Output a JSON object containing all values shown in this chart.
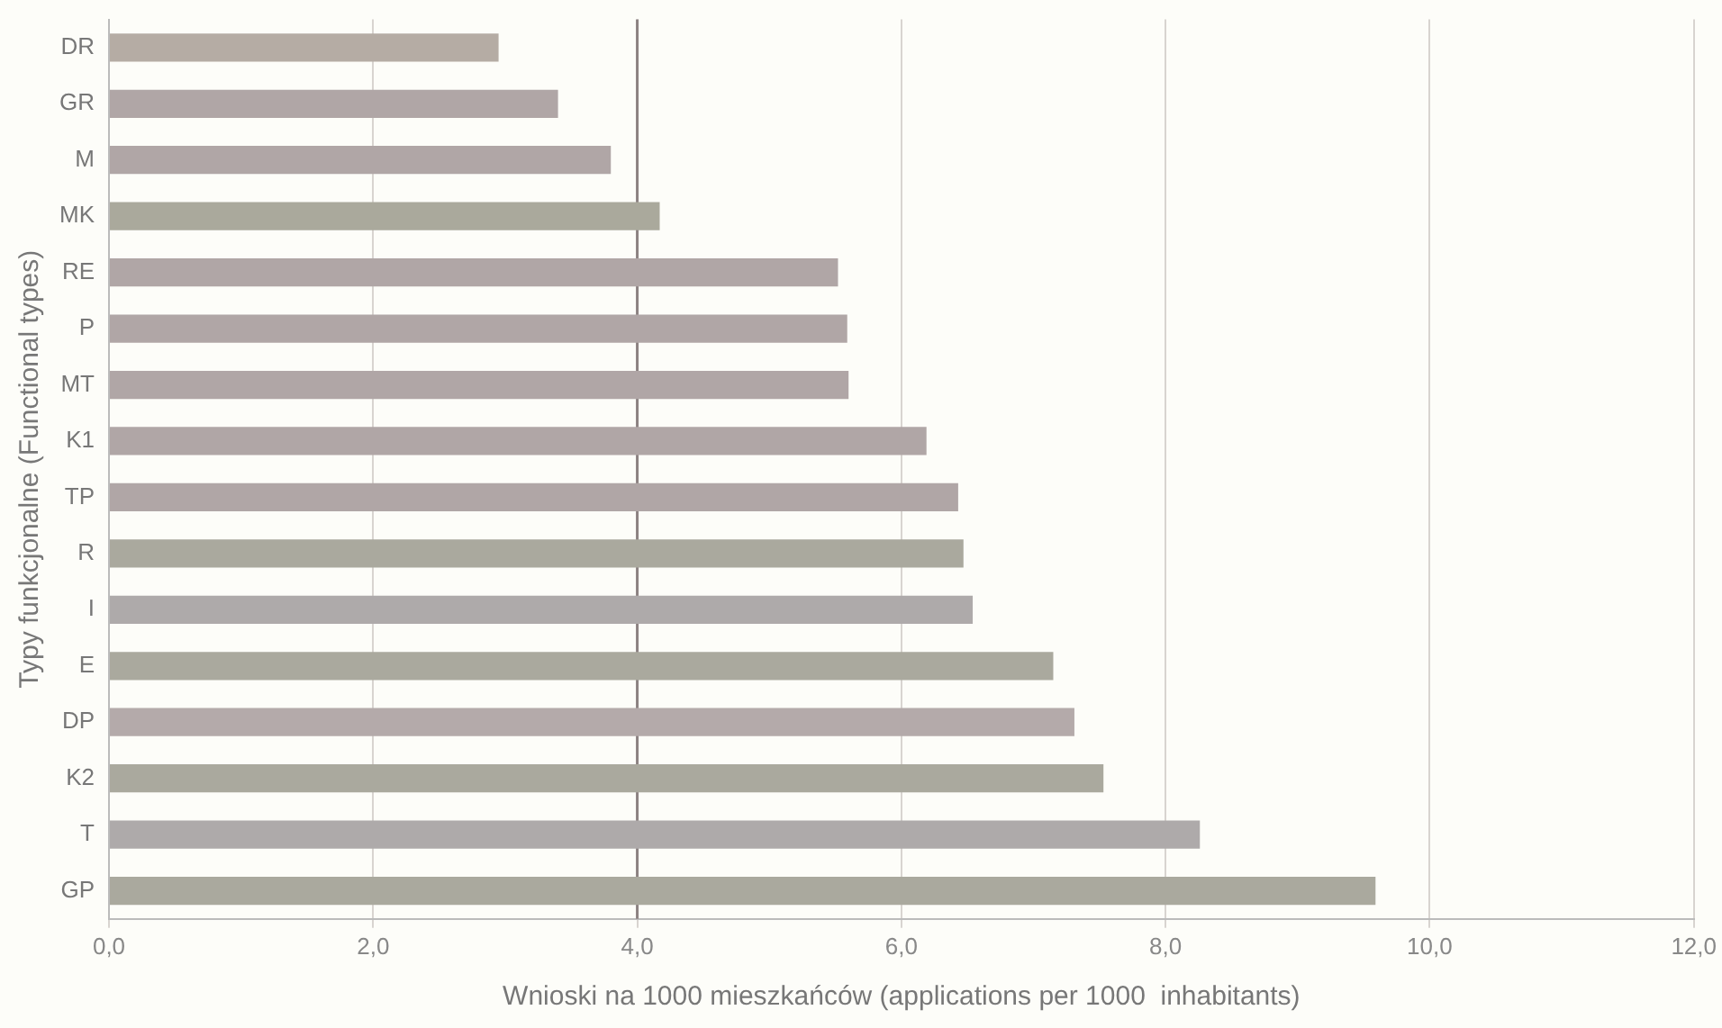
{
  "chart_data": {
    "type": "bar",
    "orientation": "horizontal",
    "xlabel": "Wnioski na 1000 mieszkańców (applications per 1000  inhabitants)",
    "ylabel": "Typy funkcjonalne (Functional types)",
    "categories": [
      "DR",
      "GR",
      "M",
      "MK",
      "RE",
      "P",
      "MT",
      "K1",
      "TP",
      "R",
      "I",
      "E",
      "DP",
      "K2",
      "T",
      "GP"
    ],
    "values": [
      2.95,
      3.4,
      3.8,
      4.17,
      5.52,
      5.59,
      5.6,
      6.19,
      6.43,
      6.47,
      6.54,
      7.15,
      7.31,
      7.53,
      8.26,
      9.59
    ],
    "colors": [
      "#b5aca4",
      "#b0a6a6",
      "#b0a6a6",
      "#aaa99c",
      "#b0a6a6",
      "#b0a6a6",
      "#b0a6a6",
      "#b0a6a6",
      "#b0a6a6",
      "#aaa99e",
      "#aeaaaa",
      "#aaa99e",
      "#b4aaaa",
      "#aaa99e",
      "#aeaaaa",
      "#aaa99e"
    ],
    "xlim": [
      0,
      12
    ],
    "xticks": [
      {
        "value": 0,
        "label": "0,0"
      },
      {
        "value": 2,
        "label": "2,0"
      },
      {
        "value": 4,
        "label": "4,0"
      },
      {
        "value": 6,
        "label": "6,0"
      },
      {
        "value": 8,
        "label": "8,0"
      },
      {
        "value": 10,
        "label": "10,0"
      },
      {
        "value": 12,
        "label": "12,0"
      }
    ],
    "grid": "x",
    "legend": false,
    "ref_lines": [
      {
        "axis": "x",
        "value": 4,
        "color": "#8c8282"
      }
    ]
  }
}
